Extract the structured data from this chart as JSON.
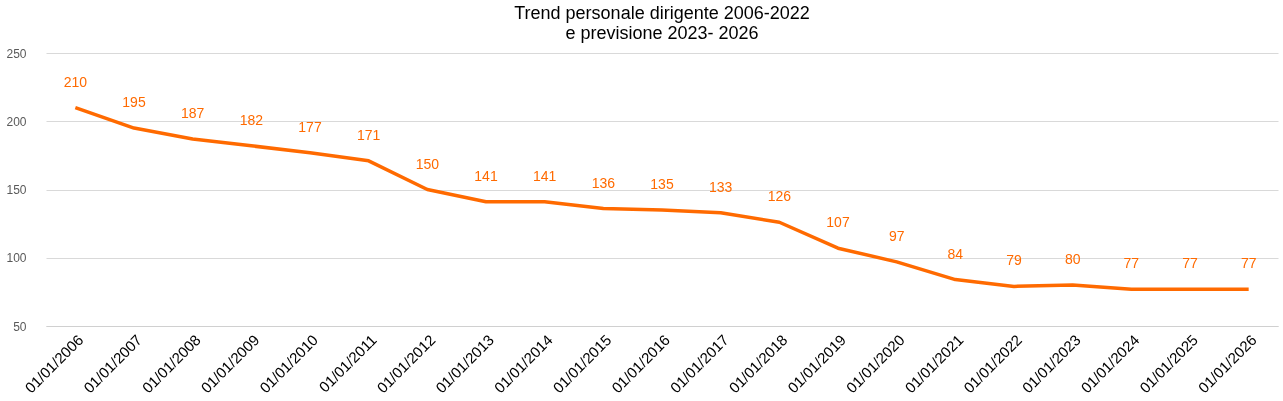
{
  "chart_data": {
    "type": "line",
    "title": "Trend personale dirigente  2006-2022\ne previsione  2023- 2026",
    "categories": [
      "01/01/2006",
      "01/01/2007",
      "01/01/2008",
      "01/01/2009",
      "01/01/2010",
      "01/01/2011",
      "01/01/2012",
      "01/01/2013",
      "01/01/2014",
      "01/01/2015",
      "01/01/2016",
      "01/01/2017",
      "01/01/2018",
      "01/01/2019",
      "01/01/2020",
      "01/01/2021",
      "01/01/2022",
      "01/01/2023",
      "01/01/2024",
      "01/01/2025",
      "01/01/2026"
    ],
    "series": [
      {
        "color": "#ff6a00",
        "values": [
          210,
          195,
          187,
          182,
          177,
          171,
          150,
          141,
          141,
          136,
          135,
          133,
          126,
          107,
          97,
          84,
          79,
          80,
          77,
          77,
          77
        ]
      }
    ],
    "ylim": [
      50,
      250
    ],
    "yticks": [
      50,
      100,
      150,
      200,
      250
    ],
    "grid": "y",
    "data_labels": true,
    "marker": "none",
    "line_style": "solid"
  }
}
